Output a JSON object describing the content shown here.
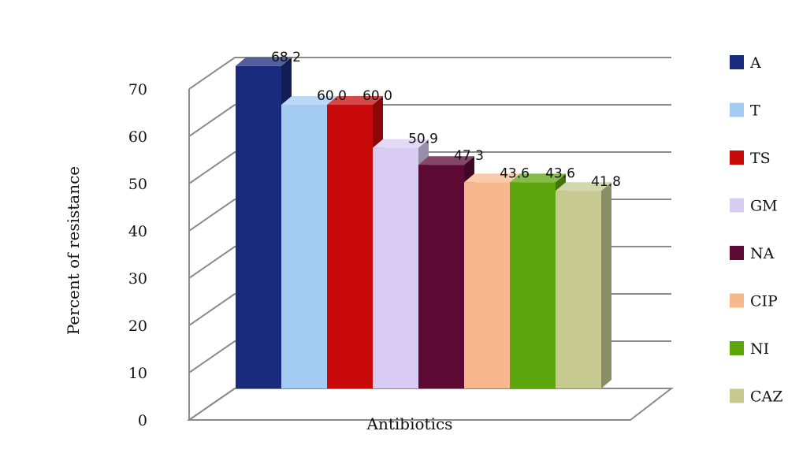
{
  "chart_data": {
    "type": "bar",
    "categories": [
      "A",
      "T",
      "TS",
      "GM",
      "NA",
      "CIP",
      "NI",
      "CAZ"
    ],
    "values": [
      68.2,
      60.0,
      60.0,
      50.9,
      47.3,
      43.6,
      43.6,
      41.8
    ],
    "data_labels": [
      "68.2",
      "60.0",
      "60.0",
      "50.9",
      "47.3",
      "43.6",
      "43.6",
      "41.8"
    ],
    "colors": [
      "#1a2a7c",
      "#a4ccf2",
      "#c80a0a",
      "#d8ccf2",
      "#5c0a34",
      "#f8b88e",
      "#5ea60e",
      "#c6c990"
    ],
    "ylabel": "Percent of resistance",
    "xlabel": "Antibiotics",
    "ylim": [
      0,
      70
    ],
    "y_ticks": [
      "0",
      "10",
      "20",
      "30",
      "40",
      "50",
      "60",
      "70"
    ],
    "grid": true,
    "style": "3d",
    "legend": {
      "position": "right",
      "entries": [
        "A",
        "T",
        "TS",
        "GM",
        "NA",
        "CIP",
        "NI",
        "CAZ"
      ]
    }
  }
}
